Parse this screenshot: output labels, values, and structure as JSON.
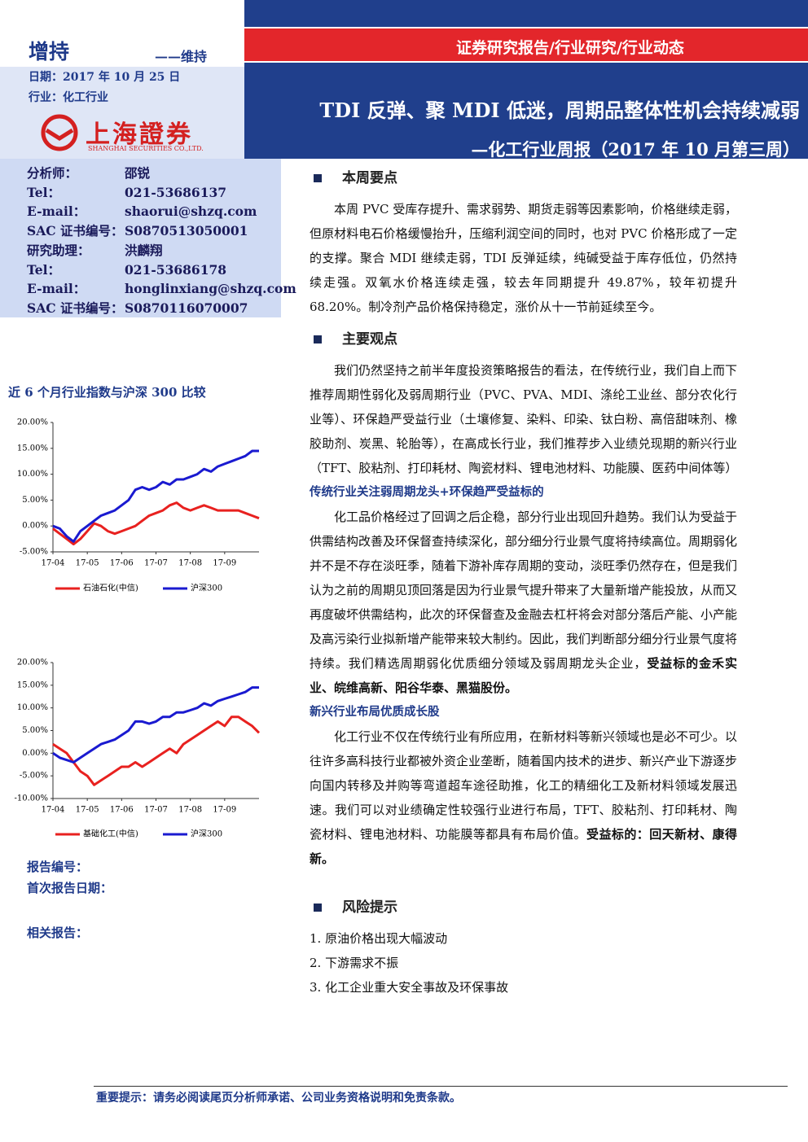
{
  "header": {
    "rating": "增持",
    "rating_note": "——维持",
    "date": "日期：2017 年 10 月 25 日",
    "industry": "行业：化工行业",
    "logo_text": "上海證券",
    "logo_sub": "SHANGHAI SECURITIES CO.,LTD."
  },
  "banner": {
    "category": "证券研究报告/行业研究/行业动态",
    "title": "TDI 反弹、聚 MDI 低迷，周期品整体性机会持续减弱",
    "subtitle": "—化工行业周报（2017 年 10 月第三周）"
  },
  "analysts": [
    [
      "分析师：",
      "邵锐"
    ],
    [
      "Tel：",
      "021-53686137"
    ],
    [
      "E-mail：",
      "shaorui@shzq.com"
    ],
    [
      "SAC 证书编号：",
      "S0870513050001"
    ],
    [
      "研究助理：",
      "洪麟翔"
    ],
    [
      "Tel：",
      "021-53686178"
    ],
    [
      "E-mail：",
      "honglinxiang@shzq.com"
    ],
    [
      "SAC 证书编号：",
      "S0870116070007"
    ]
  ],
  "chart_heading": "近 6 个月行业指数与沪深 300 比较",
  "chart_data": [
    {
      "type": "line",
      "categories": [
        "17-04",
        null,
        null,
        null,
        null,
        "17-05",
        null,
        null,
        null,
        null,
        "17-06",
        null,
        null,
        null,
        null,
        "17-07",
        null,
        null,
        null,
        null,
        "17-08",
        null,
        null,
        null,
        null,
        "17-09",
        null,
        null,
        null,
        null,
        null
      ],
      "series": [
        {
          "name": "石油石化(中信)",
          "color": "#e8211f",
          "values": [
            -0.5,
            -1.5,
            -2.5,
            -3.5,
            -2.5,
            -1,
            0.5,
            0,
            -1,
            -1.5,
            -1,
            -0.5,
            0,
            1,
            2,
            2.5,
            3,
            4,
            4.5,
            3.5,
            3,
            3.5,
            4,
            3.5,
            3,
            3,
            3,
            3,
            2.5,
            2,
            1.5
          ]
        },
        {
          "name": "沪深300",
          "color": "#1a1ad0",
          "values": [
            0,
            -0.5,
            -2,
            -3,
            -1,
            0,
            1,
            2,
            2.5,
            3,
            4,
            5,
            7,
            7.5,
            7,
            7.5,
            8.5,
            8,
            9,
            9,
            9.5,
            10,
            11,
            10.5,
            11.5,
            12,
            12.5,
            13,
            13.5,
            14.5,
            14.5
          ]
        }
      ],
      "ylim": [
        -5,
        20
      ],
      "yticks": [
        {
          "value": -5,
          "label": "-5.00%"
        },
        {
          "value": 0,
          "label": "0.00%"
        },
        {
          "value": 5,
          "label": "5.00%"
        },
        {
          "value": 10,
          "label": "10.00%"
        },
        {
          "value": 15,
          "label": "15.00%"
        },
        {
          "value": 20,
          "label": "20.00%"
        }
      ]
    },
    {
      "type": "line",
      "categories": [
        "17-04",
        null,
        null,
        null,
        null,
        "17-05",
        null,
        null,
        null,
        null,
        "17-06",
        null,
        null,
        null,
        null,
        "17-07",
        null,
        null,
        null,
        null,
        "17-08",
        null,
        null,
        null,
        null,
        "17-09",
        null,
        null,
        null,
        null,
        null
      ],
      "series": [
        {
          "name": "基础化工(中信)",
          "color": "#e8211f",
          "values": [
            2,
            1,
            0,
            -2,
            -4,
            -5,
            -7,
            -6,
            -5,
            -4,
            -3,
            -3,
            -2,
            -3,
            -2,
            -1,
            0,
            1,
            0,
            2,
            3,
            4,
            5,
            6,
            7,
            6,
            8,
            8,
            7,
            6,
            4.5
          ]
        },
        {
          "name": "沪深300",
          "color": "#1a1ad0",
          "values": [
            0,
            -1,
            -1.5,
            -2,
            -1,
            0,
            1,
            2,
            2.5,
            3,
            4,
            5,
            7,
            7,
            6.5,
            7,
            8,
            8,
            9,
            9,
            9.5,
            10,
            11,
            10.5,
            11.5,
            12,
            12.5,
            13,
            13.5,
            14.5,
            14.5
          ]
        }
      ],
      "ylim": [
        -10,
        20
      ],
      "yticks": [
        {
          "value": -10,
          "label": "-10.00%"
        },
        {
          "value": -5,
          "label": "-5.00%"
        },
        {
          "value": 0,
          "label": "0.00%"
        },
        {
          "value": 5,
          "label": "5.00%"
        },
        {
          "value": 10,
          "label": "10.00%"
        },
        {
          "value": 15,
          "label": "15.00%"
        },
        {
          "value": 20,
          "label": "20.00%"
        }
      ]
    }
  ],
  "report_meta": [
    "报告编号：",
    "首次报告日期：",
    "相关报告："
  ],
  "sections": [
    {
      "heading": "本周要点",
      "blocks": [
        {
          "text": "本周 PVC 受库存提升、需求弱势、期货走弱等因素影响，价格继续走弱，但原材料电石价格缓慢抬升，压缩利润空间的同时，也对 PVC 价格形成了一定的支撑。聚合 MDI 继续走弱，TDI 反弹延续，纯碱受益于库存低位，仍然持续走强。双氧水价格连续走强，较去年同期提升 49.87%，较年初提升 68.20%。制冷剂产品价格保持稳定，涨价从十一节前延续至今。"
        }
      ]
    },
    {
      "heading": "主要观点",
      "blocks": [
        {
          "text": "我们仍然坚持之前半年度投资策略报告的看法，在传统行业，我们自上而下推荐周期性弱化及弱周期行业（PVC、PVA、MDI、涤纶工业丝、部分农化行业等）、环保趋严受益行业（土壤修复、染料、印染、钛白粉、高倍甜味剂、橡胶助剂、炭黑、轮胎等），在高成长行业，我们推荐步入业绩兑现期的新兴行业（TFT、胶粘剂、打印耗材、陶瓷材料、锂电池材料、功能膜、医药中间体等）"
        },
        {
          "subheading": "传统行业关注弱周期龙头+环保趋严受益标的"
        },
        {
          "text": "化工品价格经过了回调之后企稳，部分行业出现回升趋势。我们认为受益于供需结构改善及环保督查持续深化，部分细分行业景气度将持续高位。周期弱化并不是不存在淡旺季，随着下游补库存周期的变动，淡旺季仍然存在，但是我们认为之前的周期见顶回落是因为行业景气提升带来了大量新增产能投放，从而又再度破坏供需结构，此次的环保督查及金融去杠杆将会对部分落后产能、小产能及高污染行业拟新增产能带来较大制约。因此，我们判断部分细分行业景气度将持续。我们精选周期弱化优质细分领域及弱周期龙头企业，",
          "bold": "受益标的金禾实业、皖维高新、阳谷华泰、黑猫股份。"
        },
        {
          "subheading": "新兴行业布局优质成长股"
        },
        {
          "text": "化工行业不仅在传统行业有所应用，在新材料等新兴领域也是必不可少。以往许多高科技行业都被外资企业垄断，随着国内技术的进步、新兴产业下游逐步向国内转移及并购等弯道超车途径助推，化工的精细化工及新材料领域发展迅速。我们可以对业绩确定性较强行业进行布局，TFT、胶粘剂、打印耗材、陶瓷材料、锂电池材料、功能膜等都具有布局价值。",
          "bold": "受益标的：回天新材、康得新。"
        }
      ]
    },
    {
      "heading": "风险提示",
      "items": [
        "1. 原油价格出现大幅波动",
        "2. 下游需求不振",
        "3. 化工企业重大安全事故及环保事故"
      ]
    }
  ],
  "footer": "重要提示：请务必阅读尾页分析师承诺、公司业务资格说明和免责条款。"
}
